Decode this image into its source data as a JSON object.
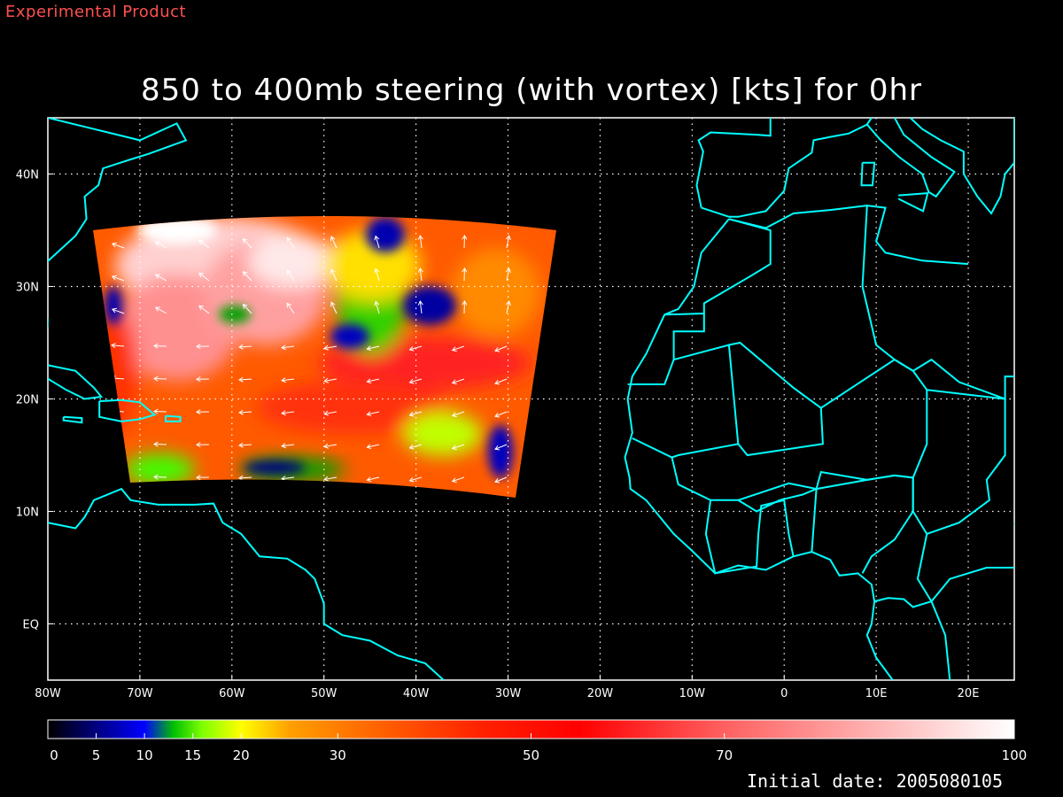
{
  "header": {
    "tag": "Experimental Product",
    "title": "850 to 400mb steering (with vortex) [kts] for 0hr"
  },
  "footer": {
    "initial_date": "Initial date: 2005080105"
  },
  "map": {
    "lon_range": [
      -80,
      25
    ],
    "lat_range": [
      -5,
      45
    ],
    "x_ticks": [
      {
        "value": -80,
        "label": "80W"
      },
      {
        "value": -70,
        "label": "70W"
      },
      {
        "value": -60,
        "label": "60W"
      },
      {
        "value": -50,
        "label": "50W"
      },
      {
        "value": -40,
        "label": "40W"
      },
      {
        "value": -30,
        "label": "30W"
      },
      {
        "value": -20,
        "label": "20W"
      },
      {
        "value": -10,
        "label": "10W"
      },
      {
        "value": 0,
        "label": "0"
      },
      {
        "value": 10,
        "label": "10E"
      },
      {
        "value": 20,
        "label": "20E"
      }
    ],
    "y_ticks": [
      {
        "value": 0,
        "label": "EQ"
      },
      {
        "value": 10,
        "label": "10N"
      },
      {
        "value": 20,
        "label": "20N"
      },
      {
        "value": 30,
        "label": "30N"
      },
      {
        "value": 40,
        "label": "40N"
      }
    ],
    "coastline_color": "#00ffff",
    "grid": true
  },
  "colorbar": {
    "min": 0,
    "max": 100,
    "ticks": [
      {
        "value": 0,
        "label": "0"
      },
      {
        "value": 5,
        "label": "5"
      },
      {
        "value": 10,
        "label": "10"
      },
      {
        "value": 15,
        "label": "15"
      },
      {
        "value": 20,
        "label": "20"
      },
      {
        "value": 30,
        "label": "30"
      },
      {
        "value": 50,
        "label": "50"
      },
      {
        "value": 70,
        "label": "70"
      },
      {
        "value": 100,
        "label": "100"
      }
    ],
    "stops": [
      {
        "value": 0,
        "color": "#000000"
      },
      {
        "value": 5,
        "color": "#00007f"
      },
      {
        "value": 10,
        "color": "#0000ff"
      },
      {
        "value": 13,
        "color": "#00c000"
      },
      {
        "value": 16,
        "color": "#7fff00"
      },
      {
        "value": 20,
        "color": "#ffff00"
      },
      {
        "value": 25,
        "color": "#ffa000"
      },
      {
        "value": 32,
        "color": "#ff7000"
      },
      {
        "value": 45,
        "color": "#ff2000"
      },
      {
        "value": 55,
        "color": "#ff0000"
      },
      {
        "value": 70,
        "color": "#ff6060"
      },
      {
        "value": 85,
        "color": "#ffb0b0"
      },
      {
        "value": 100,
        "color": "#ffffff"
      }
    ]
  }
}
